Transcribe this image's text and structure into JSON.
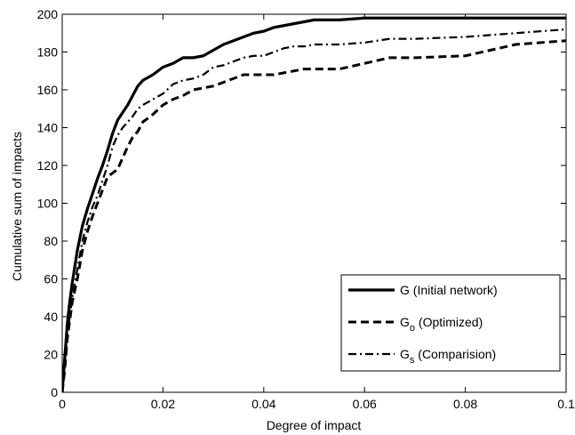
{
  "chart_data": {
    "type": "line",
    "title": "",
    "xlabel": "Degree of impact",
    "ylabel": "Cumulative sum of impacts",
    "xlim": [
      0,
      0.1
    ],
    "ylim": [
      0,
      200
    ],
    "xticks": [
      0,
      0.02,
      0.04,
      0.06,
      0.08,
      0.1
    ],
    "xtick_labels": [
      "0",
      "0.02",
      "0.04",
      "0.06",
      "0.08",
      "0.1"
    ],
    "yticks": [
      0,
      20,
      40,
      60,
      80,
      100,
      120,
      140,
      160,
      180,
      200
    ],
    "ytick_labels": [
      "0",
      "20",
      "40",
      "60",
      "80",
      "100",
      "120",
      "140",
      "160",
      "180",
      "200"
    ],
    "grid": false,
    "legend_position": "bottom-right",
    "series": [
      {
        "name": "G (Initial network)",
        "legend_main": "G",
        "legend_sub": "",
        "legend_rest": " (Initial network)",
        "style": "solid",
        "x": [
          0,
          0.0005,
          0.001,
          0.0015,
          0.002,
          0.003,
          0.004,
          0.005,
          0.006,
          0.007,
          0.008,
          0.009,
          0.01,
          0.011,
          0.012,
          0.013,
          0.014,
          0.015,
          0.016,
          0.018,
          0.02,
          0.022,
          0.024,
          0.026,
          0.028,
          0.03,
          0.032,
          0.034,
          0.036,
          0.038,
          0.04,
          0.042,
          0.044,
          0.046,
          0.048,
          0.05,
          0.055,
          0.06,
          0.065,
          0.07,
          0.08,
          0.09,
          0.1
        ],
        "y": [
          0,
          18,
          36,
          48,
          58,
          75,
          88,
          97,
          105,
          113,
          120,
          128,
          137,
          144,
          148,
          152,
          157,
          162,
          165,
          168,
          172,
          174,
          177,
          177,
          178,
          181,
          184,
          186,
          188,
          190,
          191,
          193,
          194,
          195,
          196,
          197,
          197,
          198,
          198,
          198,
          198,
          198,
          198
        ]
      },
      {
        "name": "Go (Optimized)",
        "legend_main": "G",
        "legend_sub": "o",
        "legend_rest": " (Optimized)",
        "style": "dashed",
        "x": [
          0,
          0.0005,
          0.001,
          0.0015,
          0.002,
          0.003,
          0.004,
          0.005,
          0.006,
          0.007,
          0.008,
          0.009,
          0.01,
          0.011,
          0.012,
          0.013,
          0.014,
          0.015,
          0.016,
          0.018,
          0.02,
          0.022,
          0.024,
          0.026,
          0.028,
          0.03,
          0.032,
          0.034,
          0.036,
          0.038,
          0.04,
          0.042,
          0.044,
          0.046,
          0.048,
          0.05,
          0.055,
          0.06,
          0.065,
          0.07,
          0.08,
          0.09,
          0.1
        ],
        "y": [
          0,
          12,
          28,
          38,
          48,
          60,
          75,
          85,
          93,
          100,
          107,
          114,
          116,
          118,
          124,
          130,
          135,
          138,
          143,
          147,
          152,
          155,
          157,
          160,
          161,
          162,
          164,
          166,
          168,
          168,
          168,
          168,
          169,
          170,
          171,
          171,
          171,
          174,
          177,
          177,
          178,
          184,
          186
        ]
      },
      {
        "name": "Gs (Comparision)",
        "legend_main": "G",
        "legend_sub": "s",
        "legend_rest": " (Comparision)",
        "style": "dashdot",
        "x": [
          0,
          0.0005,
          0.001,
          0.0015,
          0.002,
          0.003,
          0.004,
          0.005,
          0.006,
          0.007,
          0.008,
          0.009,
          0.01,
          0.011,
          0.012,
          0.013,
          0.014,
          0.015,
          0.016,
          0.018,
          0.02,
          0.022,
          0.024,
          0.026,
          0.028,
          0.03,
          0.032,
          0.034,
          0.036,
          0.038,
          0.04,
          0.042,
          0.044,
          0.046,
          0.048,
          0.05,
          0.055,
          0.06,
          0.065,
          0.07,
          0.08,
          0.09,
          0.1
        ],
        "y": [
          0,
          15,
          30,
          40,
          50,
          65,
          80,
          90,
          98,
          104,
          112,
          120,
          130,
          136,
          140,
          143,
          146,
          150,
          152,
          155,
          158,
          163,
          165,
          166,
          168,
          172,
          173,
          175,
          177,
          178,
          178,
          180,
          182,
          183,
          183,
          184,
          184,
          185,
          187,
          187,
          188,
          190,
          192
        ]
      }
    ]
  }
}
